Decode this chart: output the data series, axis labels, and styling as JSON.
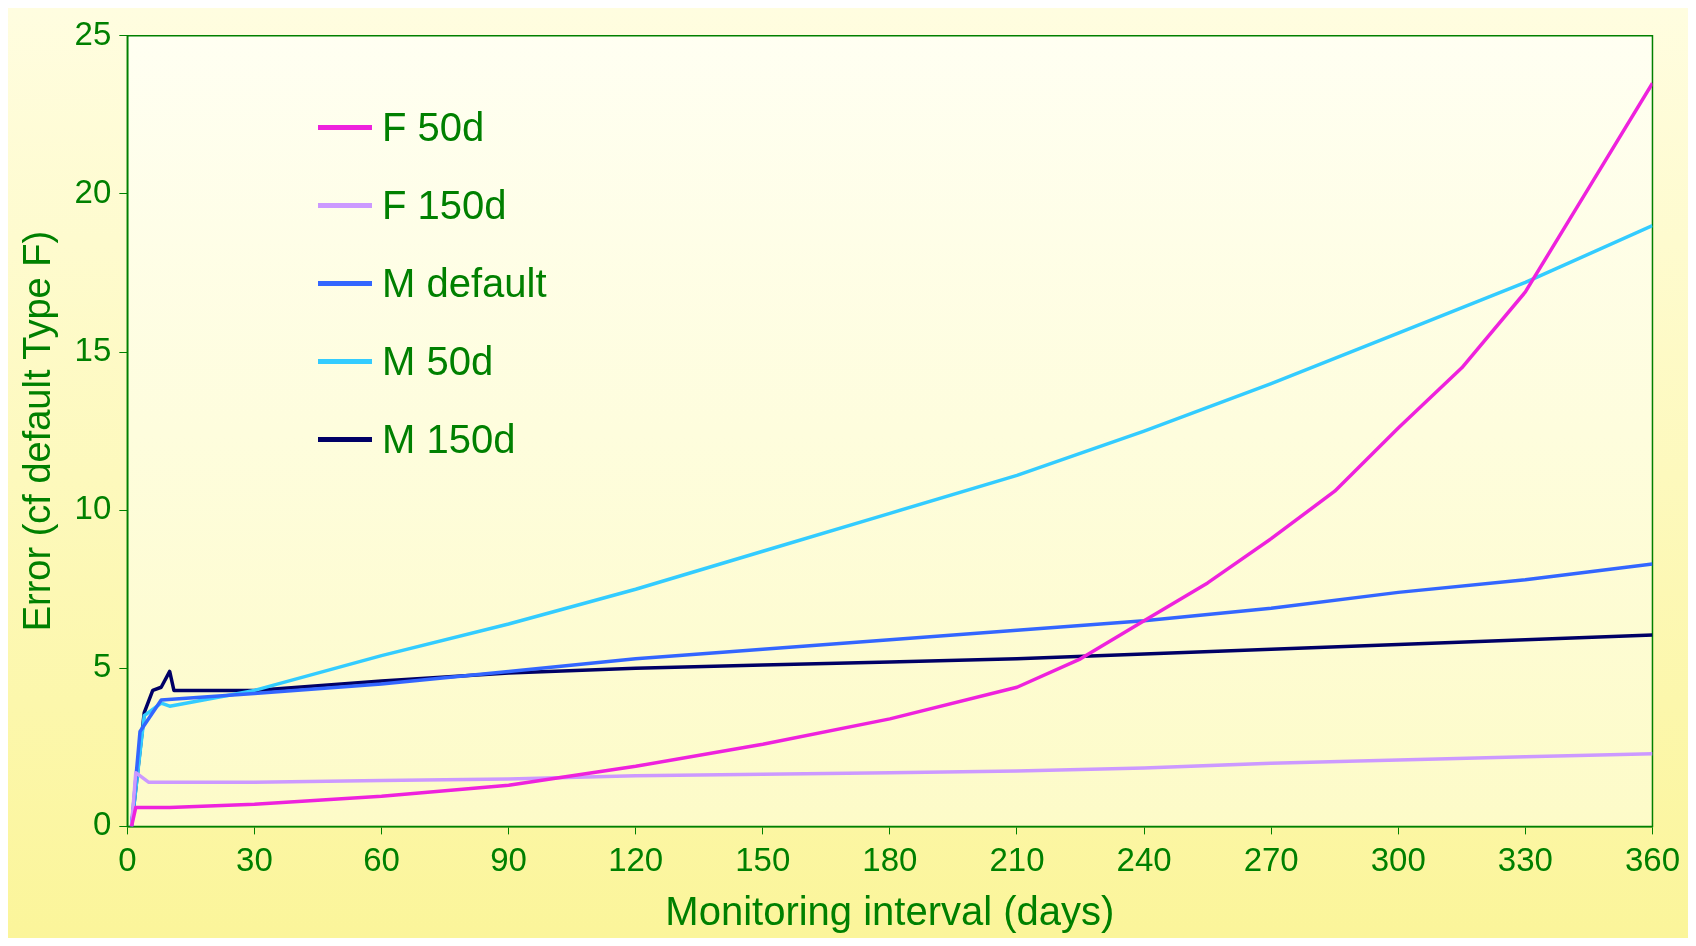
{
  "chart_data": {
    "type": "line",
    "xlabel": "Monitoring interval (days)",
    "ylabel": "Error (cf default Type F)",
    "xlim": [
      0,
      360
    ],
    "xticks": [
      0,
      30,
      60,
      90,
      120,
      150,
      180,
      210,
      240,
      270,
      300,
      330,
      360
    ],
    "ylim": [
      0,
      25
    ],
    "yticks": [
      0,
      5,
      10,
      15,
      20,
      25
    ],
    "grid": false,
    "legend": "top left",
    "marker": "none",
    "line_style": "solid",
    "series": [
      {
        "name": "F 50d",
        "color": "#ee22dd",
        "x": [
          1,
          2,
          5,
          10,
          30,
          60,
          90,
          120,
          150,
          180,
          210,
          225,
          240,
          255,
          270,
          285,
          300,
          315,
          330,
          345,
          360
        ],
        "values": [
          0,
          0.6,
          0.6,
          0.6,
          0.7,
          0.95,
          1.3,
          1.9,
          2.6,
          3.4,
          4.4,
          5.3,
          6.5,
          7.7,
          9.1,
          10.6,
          12.6,
          14.5,
          16.9,
          20.2,
          23.5
        ]
      },
      {
        "name": "F 150d",
        "color": "#cc99ff",
        "x": [
          1,
          2,
          5,
          10,
          30,
          60,
          90,
          120,
          150,
          180,
          210,
          240,
          270,
          300,
          330,
          360
        ],
        "values": [
          0,
          1.7,
          1.4,
          1.4,
          1.4,
          1.45,
          1.5,
          1.6,
          1.65,
          1.7,
          1.75,
          1.85,
          2.0,
          2.1,
          2.2,
          2.3
        ]
      },
      {
        "name": "M default",
        "color": "#3366ff",
        "x": [
          1,
          3,
          8,
          30,
          60,
          90,
          120,
          150,
          180,
          210,
          240,
          270,
          300,
          330,
          360
        ],
        "values": [
          0,
          3,
          4.0,
          4.2,
          4.5,
          4.9,
          5.3,
          5.6,
          5.9,
          6.2,
          6.5,
          6.9,
          7.4,
          7.8,
          8.3
        ]
      },
      {
        "name": "M 50d",
        "color": "#33ccff",
        "x": [
          1,
          4,
          8,
          10,
          30,
          60,
          90,
          120,
          150,
          180,
          210,
          240,
          270,
          300,
          330,
          360
        ],
        "values": [
          0,
          3.5,
          3.9,
          3.8,
          4.3,
          5.4,
          6.4,
          7.5,
          8.7,
          9.9,
          11.1,
          12.5,
          14.0,
          15.6,
          17.2,
          19.0
        ]
      },
      {
        "name": "M 150d",
        "color": "#000066",
        "x": [
          1,
          4,
          6,
          8,
          10,
          11,
          30,
          60,
          90,
          120,
          150,
          180,
          210,
          240,
          270,
          300,
          330,
          360
        ],
        "values": [
          0,
          3.6,
          4.3,
          4.4,
          4.9,
          4.3,
          4.3,
          4.6,
          4.85,
          5.0,
          5.1,
          5.2,
          5.3,
          5.45,
          5.6,
          5.75,
          5.9,
          6.05
        ]
      }
    ]
  }
}
